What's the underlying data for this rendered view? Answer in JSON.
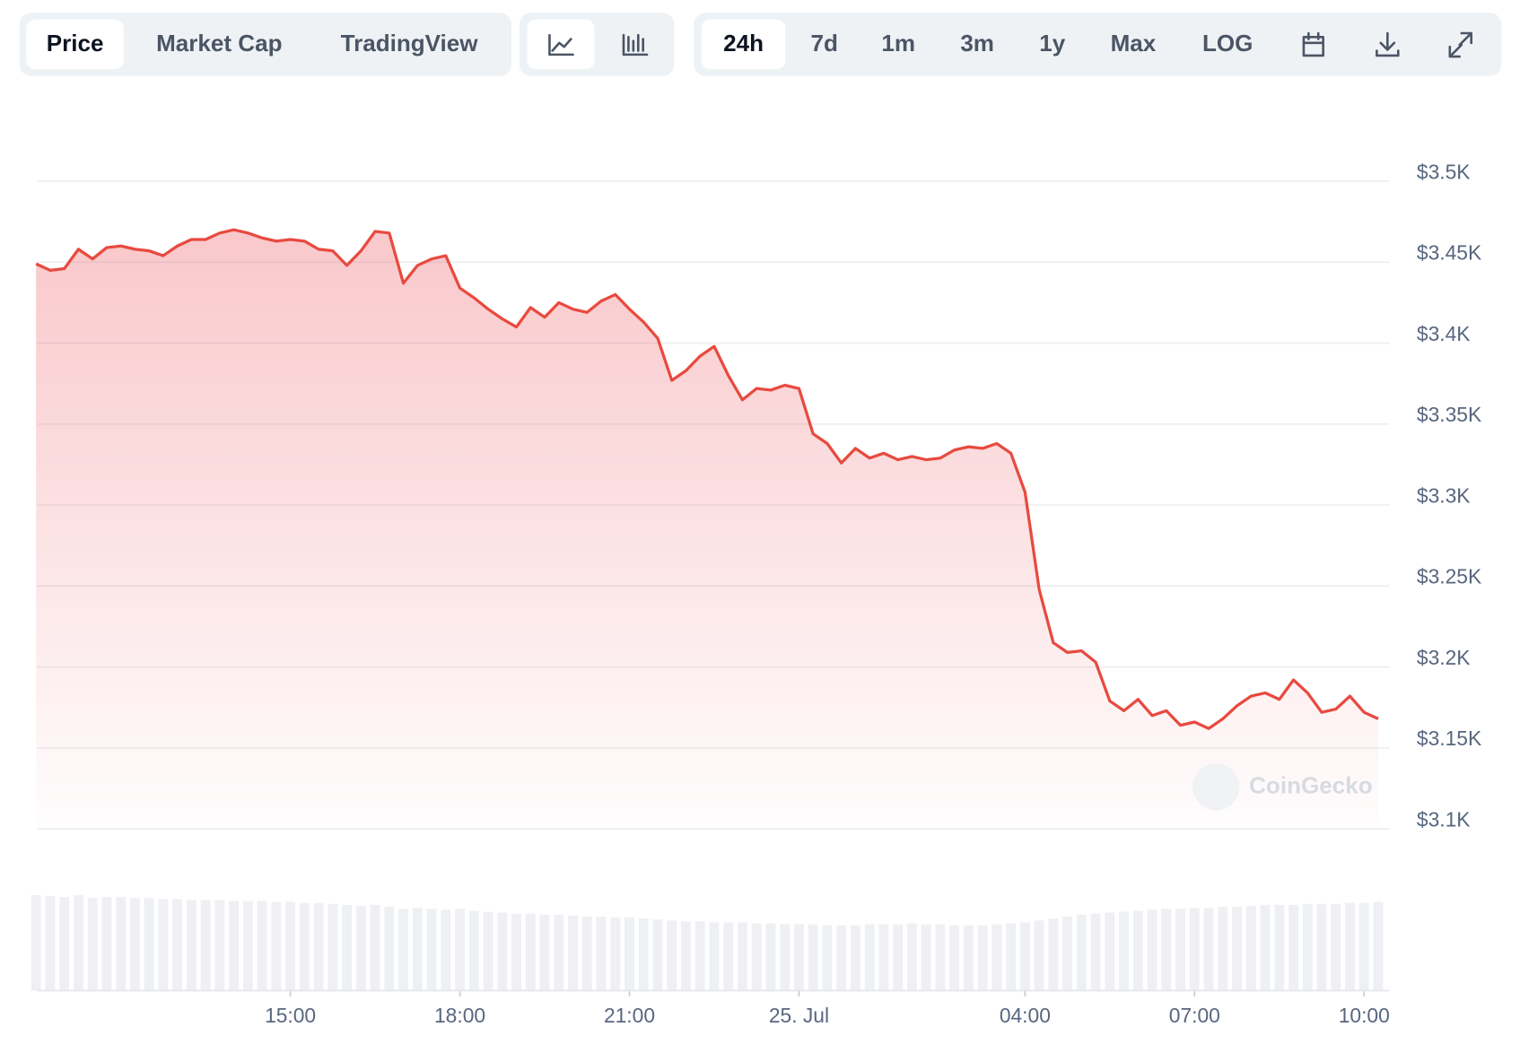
{
  "tabs": [
    "Price",
    "Market Cap",
    "TradingView"
  ],
  "ranges": [
    "24h",
    "7d",
    "1m",
    "3m",
    "1y",
    "Max",
    "LOG"
  ],
  "watermark": "CoinGecko",
  "chart_data": {
    "type": "line",
    "x": [
      "10:30",
      "10:45",
      "11:00",
      "11:15",
      "11:30",
      "11:45",
      "12:00",
      "12:15",
      "12:30",
      "12:45",
      "13:00",
      "13:15",
      "13:30",
      "13:45",
      "14:00",
      "14:15",
      "14:30",
      "14:45",
      "15:00",
      "15:15",
      "15:30",
      "15:45",
      "16:00",
      "16:15",
      "16:30",
      "16:45",
      "17:00",
      "17:15",
      "17:30",
      "17:45",
      "18:00",
      "18:15",
      "18:30",
      "18:45",
      "19:00",
      "19:15",
      "19:30",
      "19:45",
      "20:00",
      "20:15",
      "20:30",
      "20:45",
      "21:00",
      "21:15",
      "21:30",
      "21:45",
      "22:00",
      "22:15",
      "22:30",
      "22:45",
      "23:00",
      "23:15",
      "23:30",
      "23:45",
      "00:00",
      "00:15",
      "00:30",
      "00:45",
      "01:00",
      "01:15",
      "01:30",
      "01:45",
      "02:00",
      "02:15",
      "02:30",
      "02:45",
      "03:00",
      "03:15",
      "03:30",
      "03:45",
      "04:00",
      "04:15",
      "04:30",
      "04:45",
      "05:00",
      "05:15",
      "05:30",
      "05:45",
      "06:00",
      "06:15",
      "06:30",
      "06:45",
      "07:00",
      "07:15",
      "07:30",
      "07:45",
      "08:00",
      "08:15",
      "08:30",
      "08:45",
      "09:00",
      "09:15",
      "09:30",
      "09:45",
      "10:00",
      "10:15"
    ],
    "series": [
      {
        "name": "Price",
        "color": "#e84a3f",
        "values": [
          3449,
          3445,
          3446,
          3458,
          3452,
          3459,
          3460,
          3458,
          3457,
          3454,
          3460,
          3464,
          3464,
          3468,
          3470,
          3468,
          3465,
          3463,
          3464,
          3463,
          3458,
          3457,
          3448,
          3457,
          3469,
          3468,
          3437,
          3448,
          3452,
          3454,
          3434,
          3428,
          3421,
          3415,
          3410,
          3422,
          3416,
          3425,
          3421,
          3419,
          3426,
          3430,
          3421,
          3413,
          3403,
          3377,
          3383,
          3392,
          3398,
          3380,
          3365,
          3372,
          3371,
          3374,
          3372,
          3344,
          3338,
          3326,
          3335,
          3329,
          3332,
          3328,
          3330,
          3328,
          3329,
          3334,
          3336,
          3335,
          3338,
          3332,
          3308,
          3248,
          3215,
          3209,
          3210,
          3203,
          3179,
          3173,
          3180,
          3170,
          3173,
          3164,
          3166,
          3162,
          3168,
          3176,
          3182,
          3184,
          3180,
          3192,
          3184,
          3172,
          3174,
          3182,
          3172,
          3168
        ]
      },
      {
        "name": "Volume",
        "color": "#eef0f3",
        "axis": "y2",
        "values": [
          98,
          97,
          96,
          98,
          95,
          96,
          96,
          95,
          95,
          94,
          94,
          93,
          93,
          93,
          92,
          92,
          92,
          91,
          91,
          90,
          90,
          89,
          88,
          87,
          88,
          86,
          84,
          85,
          84,
          83,
          84,
          82,
          81,
          80,
          79,
          79,
          78,
          78,
          77,
          76,
          76,
          75,
          75,
          74,
          73,
          72,
          71,
          71,
          70,
          70,
          70,
          69,
          69,
          68,
          68,
          68,
          67,
          67,
          67,
          68,
          68,
          68,
          69,
          68,
          68,
          67,
          67,
          67,
          68,
          69,
          70,
          72,
          74,
          76,
          78,
          79,
          80,
          81,
          82,
          83,
          84,
          84,
          85,
          85,
          86,
          86,
          87,
          88,
          88,
          88,
          89,
          89,
          89,
          90,
          90,
          91
        ]
      }
    ],
    "ylim": [
      3100,
      3500
    ],
    "yticks": [
      {
        "value": 3100,
        "label": "$3.1K"
      },
      {
        "value": 3150,
        "label": "$3.15K"
      },
      {
        "value": 3200,
        "label": "$3.2K"
      },
      {
        "value": 3250,
        "label": "$3.25K"
      },
      {
        "value": 3300,
        "label": "$3.3K"
      },
      {
        "value": 3350,
        "label": "$3.35K"
      },
      {
        "value": 3400,
        "label": "$3.4K"
      },
      {
        "value": 3450,
        "label": "$3.45K"
      },
      {
        "value": 3500,
        "label": "$3.5K"
      }
    ],
    "y2lim": [
      0,
      100
    ],
    "xticks": [
      "15:00",
      "18:00",
      "21:00",
      {
        "value": "00:00",
        "label": "25. Jul"
      },
      "04:00",
      "07:00",
      "10:00"
    ],
    "grid": true
  }
}
